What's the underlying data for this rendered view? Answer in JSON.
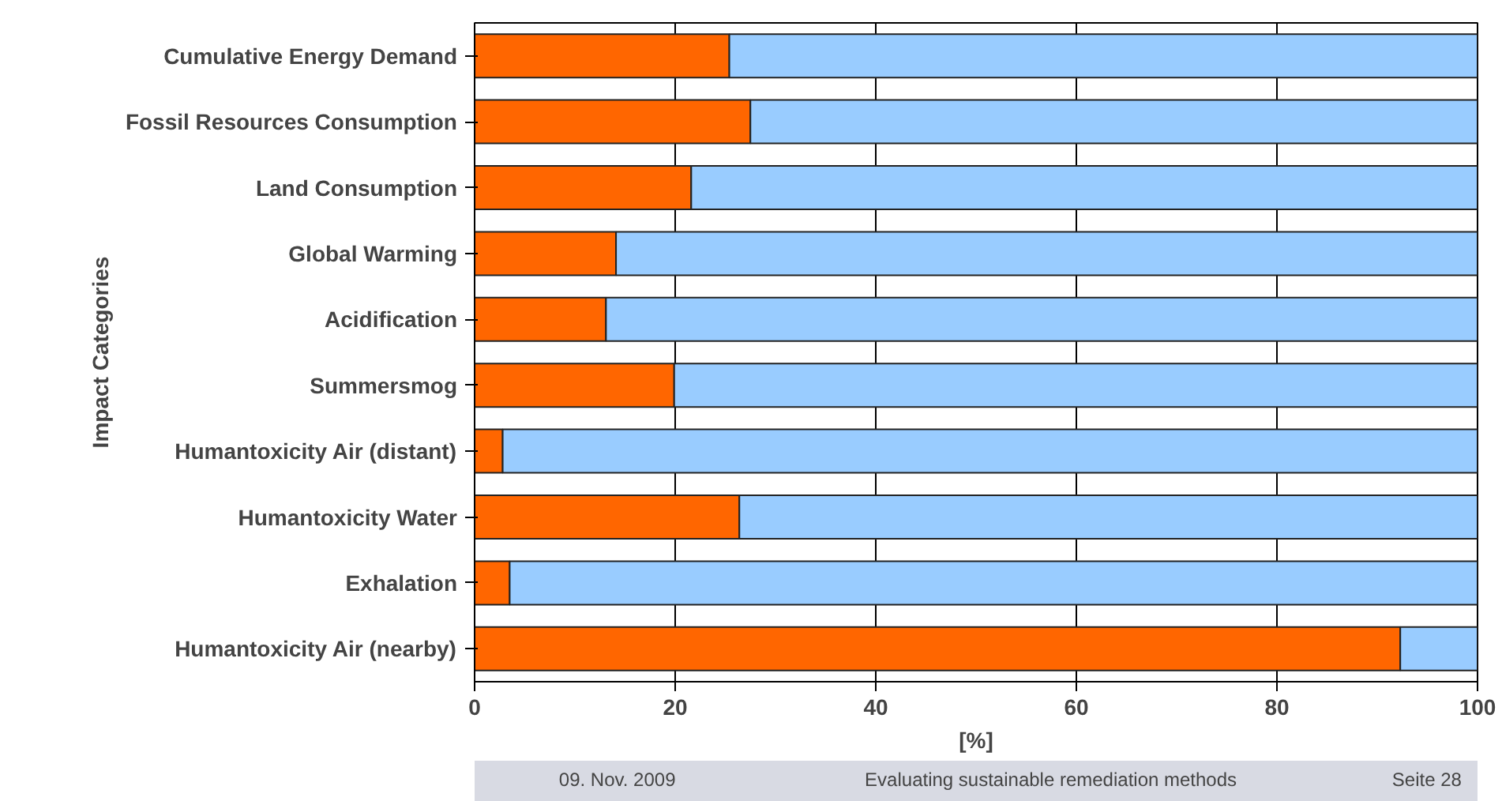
{
  "chart_data": {
    "type": "bar",
    "orientation": "horizontal",
    "stacked": true,
    "categories": [
      "Cumulative Energy Demand",
      "Fossil Resources Consumption",
      "Land Consumption",
      "Global Warming",
      "Acidification",
      "Summersmog",
      "Humantoxicity Air (distant)",
      "Humantoxicity Water",
      "Exhalation",
      "Humantoxicity Air (nearby)"
    ],
    "series": [
      {
        "color": "#ff6600",
        "values": [
          25.4,
          27.5,
          21.6,
          14.1,
          13.1,
          19.9,
          2.8,
          26.4,
          3.5,
          92.3
        ]
      },
      {
        "color": "#99ccff",
        "values": [
          74.6,
          72.5,
          78.4,
          85.9,
          86.9,
          80.1,
          97.2,
          73.6,
          96.5,
          7.7
        ]
      }
    ],
    "xlabel": "[%]",
    "ylabel": "Impact Categories",
    "xlim": [
      0,
      100
    ],
    "xticks": [
      0,
      20,
      40,
      60,
      80,
      100
    ],
    "grid": "x",
    "annotations": [
      "09. Nov. 2009",
      "Evaluating sustainable remediation methods",
      "Seite 28"
    ]
  }
}
